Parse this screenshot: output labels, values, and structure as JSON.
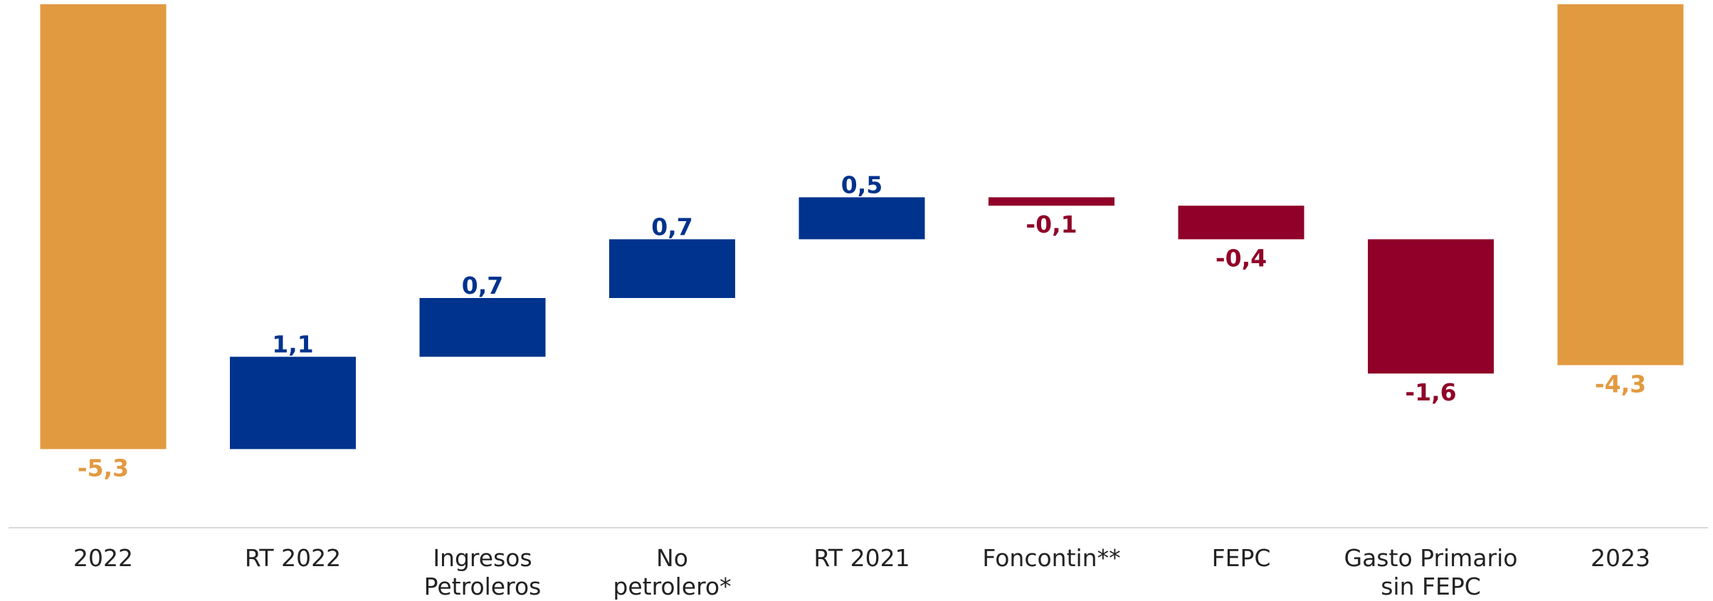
{
  "colors": {
    "total": "#E29A40",
    "positive": "#00338D",
    "negative": "#900028",
    "axis": "#D9D9D9",
    "category_text": "#222222"
  },
  "chart_data": {
    "type": "bar",
    "subtitle": "",
    "categories": [
      [
        "2022"
      ],
      [
        "RT 2022"
      ],
      [
        "Ingresos",
        "Petroleros"
      ],
      [
        "No",
        "petrolero*"
      ],
      [
        "RT 2021"
      ],
      [
        "Foncontin**"
      ],
      [
        "FEPC"
      ],
      [
        "Gasto Primario",
        "sin FEPC"
      ],
      [
        "2023"
      ]
    ],
    "values": [
      -5.3,
      1.1,
      0.7,
      0.7,
      0.5,
      -0.1,
      -0.4,
      -1.6,
      -4.3
    ],
    "labels": [
      "-5,3",
      "1,1",
      "0,7",
      "0,7",
      "0,5",
      "-0,1",
      "-0,4",
      "-1,6",
      "-4,3"
    ],
    "kinds": [
      "total",
      "positive",
      "positive",
      "positive",
      "positive",
      "negative",
      "negative",
      "negative",
      "total"
    ],
    "grid": false,
    "legend": "none"
  }
}
